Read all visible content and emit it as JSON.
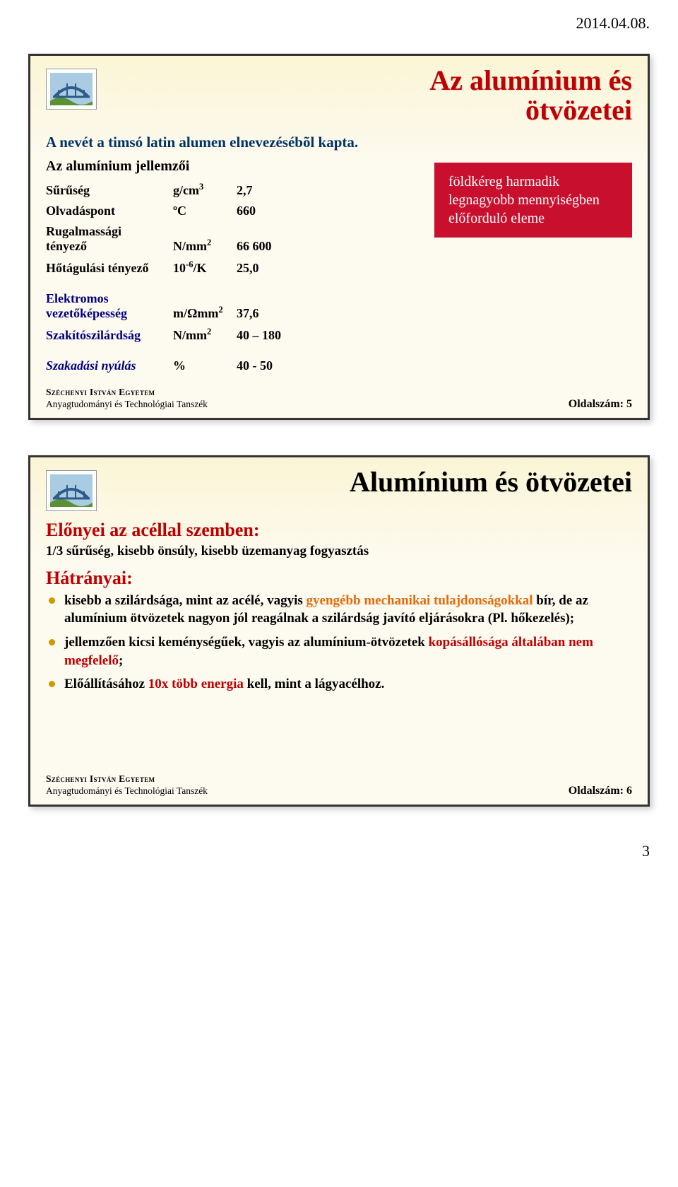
{
  "meta": {
    "date": "2014.04.08.",
    "page_number": "3",
    "university_line1": "Széchenyi István Egyetem",
    "university_line2": "Anyagtudományi és Technológiai Tanszék",
    "logo_colors": {
      "sky": "#a9cce3",
      "bridge": "#2e5a8a",
      "wave": "#5a9135"
    }
  },
  "slide1": {
    "title_line1": "Az alumínium és",
    "title_line2": "ötvözetei",
    "intro": "A nevét a timsó latin alumen elnevezésébõl kapta.",
    "sub": "Az alumínium jellemzői",
    "group1": [
      {
        "name": "Sűrűség",
        "unit_html": "g/cm<sup>3</sup>",
        "value": "2,7"
      },
      {
        "name": "Olvadáspont",
        "unit_html": "ºC",
        "value": "660"
      },
      {
        "name": "Rugalmassági\ntényező",
        "unit_html": "N/mm<sup>2</sup>",
        "value": "66 600"
      },
      {
        "name": "Hőtágulási tényező",
        "unit_html": "10<sup>-6</sup>/K",
        "value": "25,0"
      }
    ],
    "group2": [
      {
        "name": "Elektromos\nvezetőképesség",
        "unit_html": "m/Ωmm<sup>2</sup>",
        "value": "37,6"
      },
      {
        "name": "Szakítószilárdság",
        "unit_html": "N/mm<sup>2</sup>",
        "value": "40 – 180"
      }
    ],
    "group3": [
      {
        "name": "Szakadási nyúlás",
        "unit_html": "%",
        "value": "40 - 50"
      }
    ],
    "redbox_lines": [
      "földkéreg harmadik",
      "legnagyobb mennyiségben",
      "előforduló eleme"
    ],
    "footer_page": "Oldalszám: 5"
  },
  "slide2": {
    "title": "Alumínium és ötvözetei",
    "heading1": "Előnyei az acéllal szemben:",
    "line1": "1/3 sűrűség, kisebb önsúly, kisebb üzemanyag fogyasztás",
    "heading2": "Hátrányai:",
    "bullets": [
      {
        "parts": [
          {
            "text": "kisebb a szilárdsága, mint az acélé, vagyis ",
            "cls": ""
          },
          {
            "text": "gyengébb mechanikai tulajdonságokkal ",
            "cls": "txt-orange"
          },
          {
            "text": "bír, de az alumínium ötvözetek nagyon jól reagálnak a szilárdság javító eljárásokra (Pl. hőkezelés);",
            "cls": ""
          }
        ]
      },
      {
        "parts": [
          {
            "text": "jellemzően kicsi keménységűek, vagyis az alumínium-ötvözetek ",
            "cls": ""
          },
          {
            "text": "kopásállósága általában nem megfelelő",
            "cls": "txt-red"
          },
          {
            "text": ";",
            "cls": ""
          }
        ]
      },
      {
        "parts": [
          {
            "text": "Előállításához ",
            "cls": ""
          },
          {
            "text": "10x több energia ",
            "cls": "txt-red"
          },
          {
            "text": "kell, mint a lágyacélhoz.",
            "cls": ""
          }
        ]
      }
    ],
    "footer_page": "Oldalszám: 6"
  }
}
